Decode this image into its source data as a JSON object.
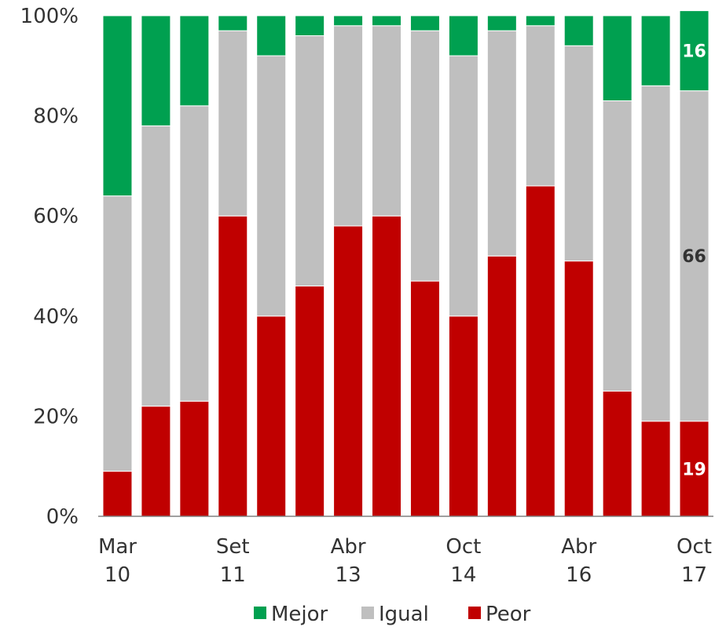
{
  "chart_data": {
    "type": "bar",
    "stacked": true,
    "y_axis": {
      "min": 0,
      "max": 100,
      "ticks": [
        0,
        20,
        40,
        60,
        80,
        100
      ],
      "tick_labels": [
        "0%",
        "20%",
        "40%",
        "60%",
        "80%",
        "100%"
      ]
    },
    "x_tick_labels": [
      {
        "index": 0,
        "lines": [
          "Mar",
          "10"
        ]
      },
      {
        "index": 3,
        "lines": [
          "Set",
          "11"
        ]
      },
      {
        "index": 6,
        "lines": [
          "Abr",
          "13"
        ]
      },
      {
        "index": 9,
        "lines": [
          "Oct",
          "14"
        ]
      },
      {
        "index": 12,
        "lines": [
          "Abr",
          "16"
        ]
      },
      {
        "index": 15,
        "lines": [
          "Oct",
          "17"
        ]
      }
    ],
    "bar_count": 16,
    "series": [
      {
        "name": "Peor",
        "color": "#C00000",
        "values": [
          9,
          22,
          23,
          60,
          40,
          46,
          58,
          60,
          47,
          40,
          52,
          66,
          51,
          25,
          19,
          19
        ]
      },
      {
        "name": "Igual",
        "color": "#BFBFBF",
        "values": [
          55,
          56,
          59,
          37,
          52,
          50,
          40,
          38,
          50,
          52,
          45,
          32,
          43,
          58,
          67,
          66
        ]
      },
      {
        "name": "Mejor",
        "color": "#00A050",
        "values": [
          36,
          22,
          18,
          3,
          8,
          4,
          2,
          2,
          3,
          8,
          3,
          2,
          6,
          17,
          14,
          16
        ]
      }
    ],
    "data_labels": [
      {
        "bar_index": 15,
        "series": "Mejor",
        "text": "16",
        "color": "#ffffff"
      },
      {
        "bar_index": 15,
        "series": "Igual",
        "text": "66",
        "color": "#333333"
      },
      {
        "bar_index": 15,
        "series": "Peor",
        "text": "19",
        "color": "#ffffff"
      }
    ],
    "legend": {
      "placement": "bottom",
      "items": [
        {
          "name": "Mejor",
          "color": "#00A050"
        },
        {
          "name": "Igual",
          "color": "#BFBFBF"
        },
        {
          "name": "Peor",
          "color": "#C00000"
        }
      ]
    },
    "grid": false
  }
}
